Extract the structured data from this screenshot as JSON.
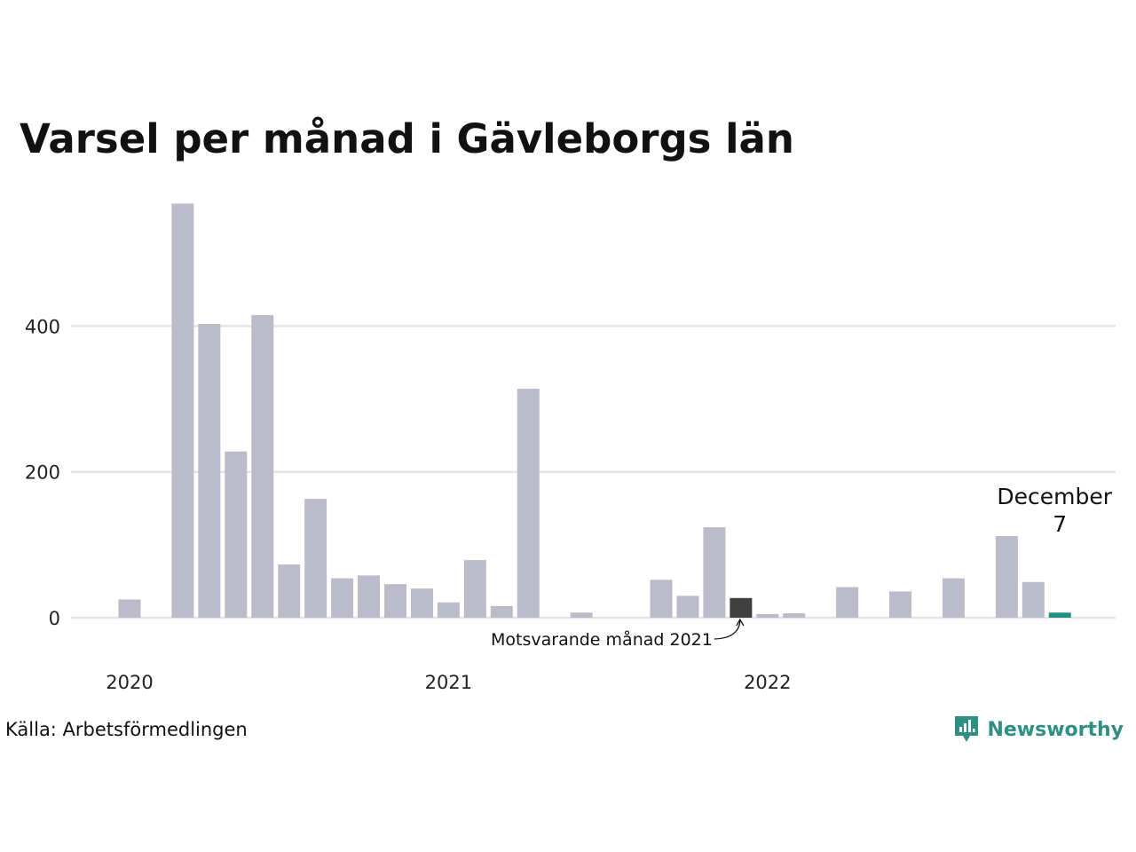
{
  "title": "Varsel per månad i Gävleborgs län",
  "source": "Källa: Arbetsförmedlingen",
  "brand": "Newsworthy",
  "colors": {
    "bar": "#bcbbc9",
    "comparison_bar": "#404040",
    "highlight_bar": "#1f9184",
    "grid": "#e3e3e8",
    "brand": "#2e8f82"
  },
  "chart_data": {
    "type": "bar",
    "categories": [
      "2020-01",
      "2020-02",
      "2020-03",
      "2020-04",
      "2020-05",
      "2020-06",
      "2020-07",
      "2020-08",
      "2020-09",
      "2020-10",
      "2020-11",
      "2020-12",
      "2021-01",
      "2021-02",
      "2021-03",
      "2021-04",
      "2021-05",
      "2021-06",
      "2021-07",
      "2021-08",
      "2021-09",
      "2021-10",
      "2021-11",
      "2021-12",
      "2022-01",
      "2022-02",
      "2022-03",
      "2022-04",
      "2022-05",
      "2022-06",
      "2022-07",
      "2022-08",
      "2022-09",
      "2022-10",
      "2022-11",
      "2022-12"
    ],
    "values": [
      25,
      0,
      568,
      403,
      228,
      415,
      73,
      163,
      54,
      58,
      46,
      40,
      21,
      79,
      16,
      314,
      0,
      7,
      0,
      0,
      52,
      30,
      124,
      27,
      5,
      6,
      0,
      42,
      0,
      36,
      0,
      54,
      0,
      112,
      49,
      7
    ],
    "comparison_index": 23,
    "highlight_index": 35,
    "ylim": [
      0,
      600
    ],
    "yticks": [
      0,
      200,
      400
    ],
    "xticks": [
      {
        "index": 0,
        "label": "2020"
      },
      {
        "index": 12,
        "label": "2021"
      },
      {
        "index": 24,
        "label": "2022"
      }
    ],
    "highlight_label": {
      "month": "December",
      "value": "7"
    },
    "comparison_annotation": "Motsvarande månad 2021",
    "grid": true,
    "xlabel": "",
    "ylabel": ""
  }
}
